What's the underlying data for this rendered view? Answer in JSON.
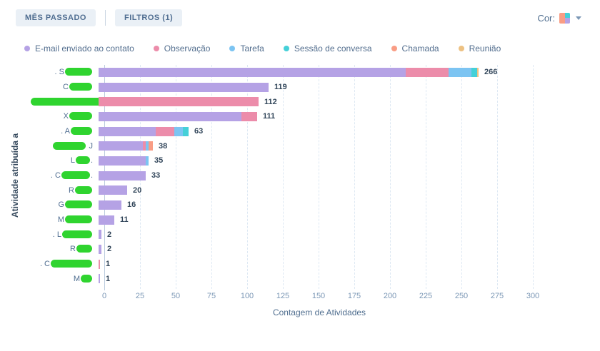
{
  "toolbar": {
    "date_filter": "MÊS PASSADO",
    "filters": "FILTROS (1)",
    "color_label": "Cor:"
  },
  "colors": {
    "purple": "#b5a2e5",
    "pink": "#ec8caa",
    "blue": "#7cc4f2",
    "teal": "#45d0d8",
    "salmon": "#f99d85",
    "tan": "#edc182",
    "redaction_green": "#2fd42f",
    "text_dark": "#33475b",
    "text_gray": "#7c98b6",
    "button_bg": "#eaf0f6",
    "button_text": "#506e91"
  },
  "chart_data": {
    "type": "bar",
    "orientation": "horizontal",
    "xlabel": "Contagem de Atividades",
    "ylabel": "Atividade atribuída a",
    "xlim": [
      0,
      300
    ],
    "xticks": [
      0,
      25,
      50,
      75,
      100,
      125,
      150,
      175,
      200,
      225,
      250,
      275,
      300
    ],
    "grid": "vertical-dashed",
    "legend_position": "top",
    "legend": [
      {
        "label": "E-mail enviado ao contato",
        "color": "#b5a2e5"
      },
      {
        "label": "Observação",
        "color": "#ec8caa"
      },
      {
        "label": "Tarefa",
        "color": "#7cc4f2"
      },
      {
        "label": "Sessão de conversa",
        "color": "#45d0d8"
      },
      {
        "label": "Chamada",
        "color": "#f99d85"
      },
      {
        "label": "Reunião",
        "color": "#edc182"
      }
    ],
    "rows": [
      {
        "label_pre": ". S",
        "label_post": "",
        "blob_w": 38,
        "total": 266,
        "segments": [
          215,
          30,
          16,
          4,
          0,
          1
        ]
      },
      {
        "label_pre": "C",
        "label_post": "",
        "blob_w": 32,
        "total": 119,
        "segments": [
          119,
          0,
          0,
          0,
          0,
          0
        ]
      },
      {
        "label_pre": "",
        "label_post": "",
        "blob_w": 112,
        "total": 112,
        "segments": [
          0,
          112,
          0,
          0,
          0,
          0
        ]
      },
      {
        "label_pre": "X",
        "label_post": "",
        "blob_w": 32,
        "total": 111,
        "segments": [
          100,
          11,
          0,
          0,
          0,
          0
        ]
      },
      {
        "label_pre": ". A",
        "label_post": "",
        "blob_w": 30,
        "total": 63,
        "segments": [
          40,
          13,
          6,
          4,
          0,
          0
        ]
      },
      {
        "label_pre": "",
        "label_post": " J",
        "blob_w": 46,
        "total": 38,
        "segments": [
          31,
          2,
          2,
          0,
          3,
          0
        ]
      },
      {
        "label_pre": "L",
        "label_post": ".",
        "blob_w": 20,
        "total": 35,
        "segments": [
          33,
          0,
          2,
          0,
          0,
          0
        ]
      },
      {
        "label_pre": ". C",
        "label_post": ".",
        "blob_w": 40,
        "total": 33,
        "segments": [
          33,
          0,
          0,
          0,
          0,
          0
        ]
      },
      {
        "label_pre": "R",
        "label_post": "",
        "blob_w": 24,
        "total": 20,
        "segments": [
          20,
          0,
          0,
          0,
          0,
          0
        ]
      },
      {
        "label_pre": "G",
        "label_post": "",
        "blob_w": 38,
        "total": 16,
        "segments": [
          16,
          0,
          0,
          0,
          0,
          0
        ]
      },
      {
        "label_pre": "M",
        "label_post": "",
        "blob_w": 38,
        "total": 11,
        "segments": [
          11,
          0,
          0,
          0,
          0,
          0
        ]
      },
      {
        "label_pre": ". L",
        "label_post": "",
        "blob_w": 42,
        "total": 2,
        "segments": [
          2,
          0,
          0,
          0,
          0,
          0
        ]
      },
      {
        "label_pre": "R",
        "label_post": "",
        "blob_w": 22,
        "total": 2,
        "segments": [
          2,
          0,
          0,
          0,
          0,
          0
        ]
      },
      {
        "label_pre": ". C",
        "label_post": "",
        "blob_w": 58,
        "total": 1,
        "segments": [
          0,
          1,
          0,
          0,
          0,
          0
        ]
      },
      {
        "label_pre": "M",
        "label_post": "",
        "blob_w": 16,
        "total": 1,
        "segments": [
          1,
          0,
          0,
          0,
          0,
          0
        ]
      }
    ]
  }
}
